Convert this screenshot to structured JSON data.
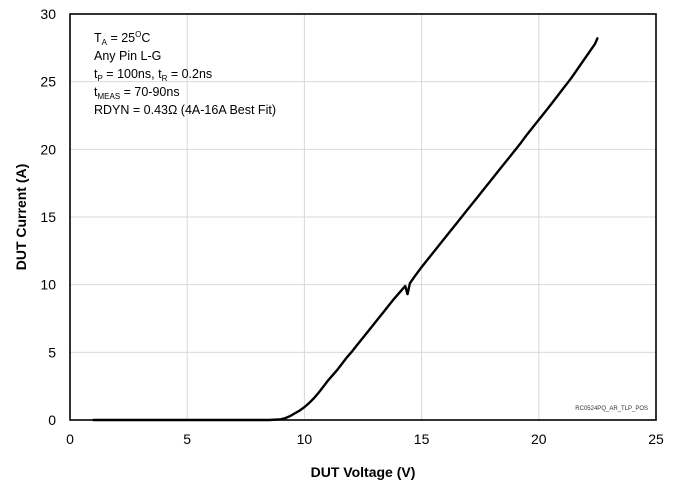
{
  "chart_data": {
    "type": "line",
    "title": "",
    "xlabel": "DUT Voltage (V)",
    "ylabel": "DUT Current (A)",
    "xlim": [
      0,
      25
    ],
    "ylim": [
      0,
      30
    ],
    "xticks": [
      "0",
      "5",
      "10",
      "15",
      "20",
      "25"
    ],
    "yticks": [
      "0",
      "5",
      "10",
      "15",
      "20",
      "25",
      "30"
    ],
    "grid": true,
    "legend": "none",
    "line_color": "#000000",
    "series": [
      {
        "x": [
          1.0,
          3.0,
          5.0,
          7.0,
          8.5,
          9.0,
          9.2,
          9.4,
          9.6,
          9.8,
          10.0,
          10.2,
          10.4,
          10.6,
          10.8,
          11.0,
          11.2,
          11.4,
          11.6,
          11.8,
          12.0,
          12.3,
          12.6,
          12.9,
          13.2,
          13.5,
          13.8,
          14.1,
          14.3,
          14.4,
          14.5,
          14.7,
          15.0,
          15.3,
          15.6,
          15.9,
          16.2,
          16.5,
          16.8,
          17.1,
          17.4,
          17.7,
          18.0,
          18.3,
          18.6,
          18.9,
          19.2,
          19.5,
          19.8,
          20.1,
          20.4,
          20.6,
          20.8,
          21.0,
          21.2,
          21.4,
          21.6,
          21.8,
          22.0,
          22.2,
          22.4,
          22.5
        ],
        "y": [
          0.0,
          0.0,
          0.0,
          0.0,
          0.0,
          0.05,
          0.15,
          0.3,
          0.5,
          0.7,
          0.95,
          1.25,
          1.6,
          2.0,
          2.45,
          2.9,
          3.3,
          3.7,
          4.15,
          4.6,
          5.0,
          5.65,
          6.3,
          6.95,
          7.6,
          8.25,
          8.9,
          9.5,
          9.9,
          9.3,
          10.1,
          10.6,
          11.3,
          11.95,
          12.6,
          13.25,
          13.9,
          14.55,
          15.2,
          15.85,
          16.5,
          17.15,
          17.8,
          18.45,
          19.1,
          19.75,
          20.4,
          21.1,
          21.75,
          22.4,
          23.05,
          23.5,
          23.95,
          24.4,
          24.85,
          25.3,
          25.8,
          26.3,
          26.8,
          27.3,
          27.8,
          28.2
        ]
      }
    ],
    "annotations": {
      "l1_main": "T",
      "l1_sub": "A",
      "l1_rest": " = 25",
      "l1_sup": "O",
      "l1_end": "C",
      "l2": "Any Pin L-G",
      "l3_a": "t",
      "l3_asub": "P",
      "l3_b": " = 100ns, t",
      "l3_bsub": "R",
      "l3_c": " = 0.2ns",
      "l4_a": "t",
      "l4_asub": "MEAS",
      "l4_b": " = 70-90ns",
      "l5": "RDYN = 0.43Ω (4A-16A Best Fit)"
    },
    "watermark": "RC0524PQ_AR_TLP_POS"
  }
}
